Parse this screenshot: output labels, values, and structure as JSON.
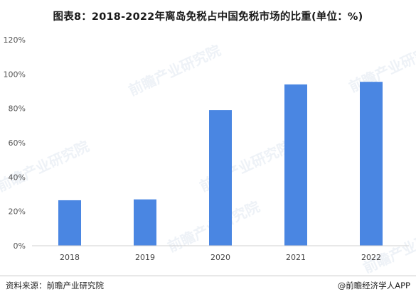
{
  "title": "图表8：2018-2022年离岛免税占中国免税市场的比重(单位：%)",
  "chart_data": {
    "type": "bar",
    "categories": [
      "2018",
      "2019",
      "2020",
      "2021",
      "2022"
    ],
    "values": [
      26.5,
      27,
      79,
      94,
      95.5
    ],
    "yticks": [
      "0%",
      "20%",
      "40%",
      "60%",
      "80%",
      "100%",
      "120%"
    ],
    "ylim": [
      0,
      120
    ],
    "grid": false,
    "bar_color": "#4a86e2"
  },
  "footer": {
    "source": "资料来源：前瞻产业研究院",
    "brand": "@前瞻经济学人APP"
  },
  "watermark": "前瞻产业研究院"
}
